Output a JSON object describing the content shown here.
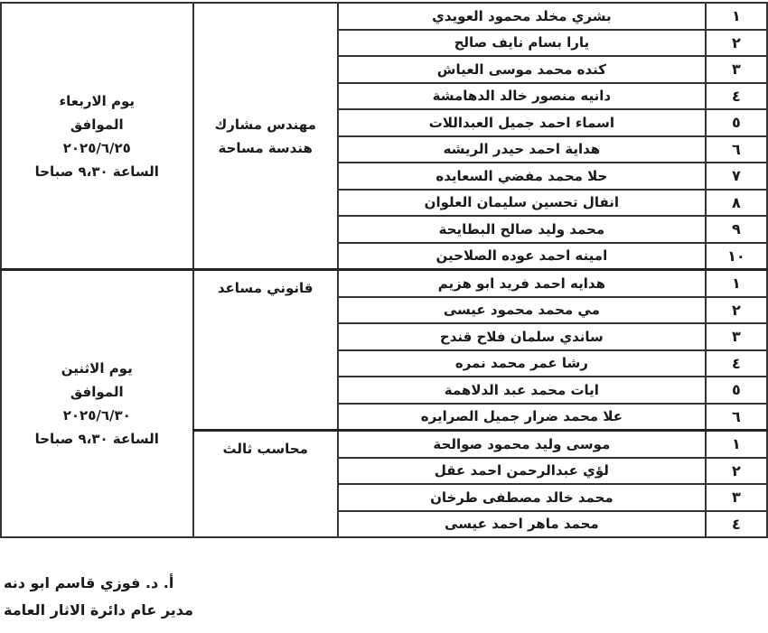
{
  "groups": [
    {
      "date_lines": [
        "يوم الاربعاء",
        "الموافق",
        "٢٠٢٥/٦/٢٥",
        "الساعة ٩،٣٠ صباحا"
      ],
      "jobs": [
        {
          "title_lines": [
            "مهندس مشارك",
            "هندسة مساحة"
          ],
          "rows": [
            {
              "num": "١",
              "name": "بشري مخلد محمود العويدي"
            },
            {
              "num": "٢",
              "name": "يارا بسام نايف صالح"
            },
            {
              "num": "٣",
              "name": "كنده محمد موسى العياش"
            },
            {
              "num": "٤",
              "name": "دانيه منصور خالد الدهامشة"
            },
            {
              "num": "٥",
              "name": "اسماء احمد جميل العبداللات"
            },
            {
              "num": "٦",
              "name": "هداية احمد حيدر الريشه"
            },
            {
              "num": "٧",
              "name": "حلا محمد مفضي السعايده"
            },
            {
              "num": "٨",
              "name": "انفال تحسين سليمان العلوان"
            },
            {
              "num": "٩",
              "name": "محمد وليد صالح البطايحة"
            },
            {
              "num": "١٠",
              "name": "امينه احمد عوده الصلاحين"
            }
          ]
        }
      ]
    },
    {
      "date_lines": [
        "يوم الاثنين",
        "الموافق",
        "٢٠٢٥/٦/٣٠",
        "الساعة ٩،٣٠ صباحا"
      ],
      "jobs": [
        {
          "title_lines": [
            "قانوني مساعد"
          ],
          "rows": [
            {
              "num": "١",
              "name": "هدايه احمد فريد ابو هزيم"
            },
            {
              "num": "٢",
              "name": "مي محمد محمود عيسى"
            },
            {
              "num": "٣",
              "name": "ساندي سلمان فلاح قندح"
            },
            {
              "num": "٤",
              "name": "رشا عمر محمد نمره"
            },
            {
              "num": "٥",
              "name": "ايات محمد عبد الدلاهمة"
            },
            {
              "num": "٦",
              "name": "علا محمد ضرار جميل الصرايره"
            }
          ]
        },
        {
          "title_lines": [
            "محاسب ثالث"
          ],
          "rows": [
            {
              "num": "١",
              "name": "موسى وليد محمود صوالحة"
            },
            {
              "num": "٢",
              "name": "لؤي عبدالرحمن احمد عقل"
            },
            {
              "num": "٣",
              "name": "محمد خالد مصطفى طرخان"
            },
            {
              "num": "٤",
              "name": "محمد ماهر احمد عيسى"
            }
          ]
        }
      ]
    }
  ],
  "signature": {
    "name": "أ. د. فوزي قاسم ابو دنه",
    "title": "مدير عام دائرة الاثار العامة"
  }
}
